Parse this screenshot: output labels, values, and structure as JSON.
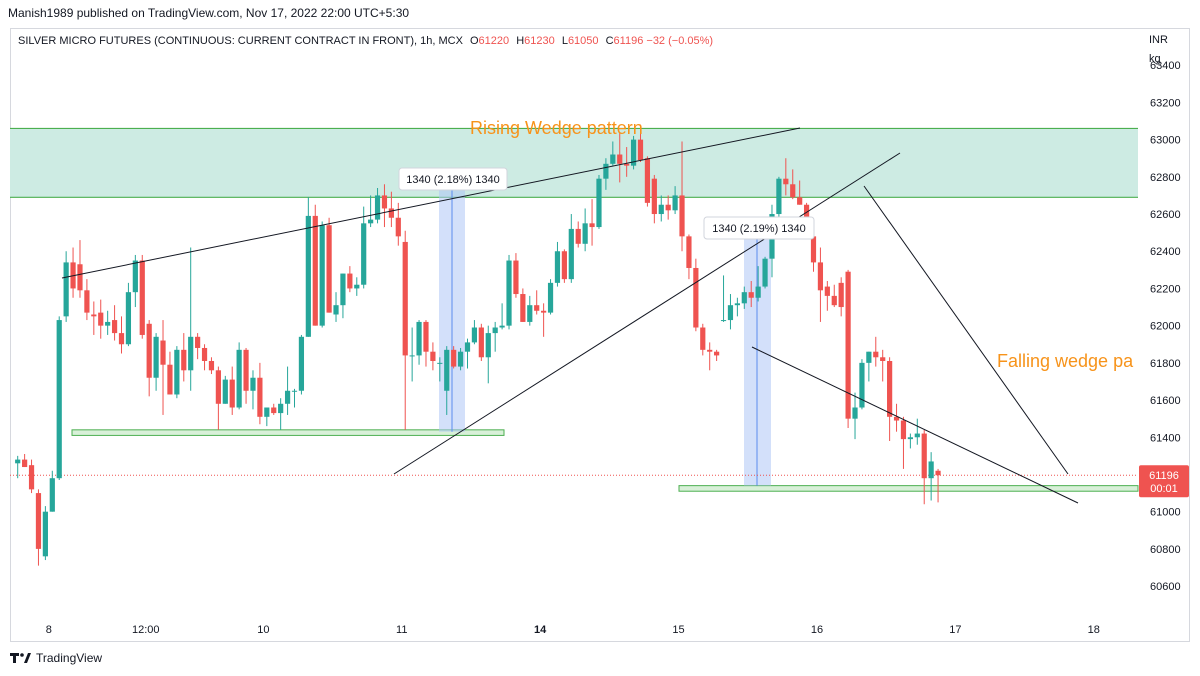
{
  "publisher_line": "Manish1989 published on TradingView.com, Nov 17, 2022 22:00 UTC+5:30",
  "legend": {
    "symbol": "SILVER MICRO FUTURES (CONTINUOUS: CURRENT CONTRACT IN FRONT), 1h, MCX",
    "o_label": "O",
    "o_value": "61220",
    "h_label": "H",
    "h_value": "61230",
    "l_label": "L",
    "l_value": "61050",
    "c_label": "C",
    "c_value": "61196",
    "change": "−32 (−0.05%)"
  },
  "axis_units": [
    "INR",
    "kg"
  ],
  "price_label": {
    "price": "61196",
    "countdown": "00:01"
  },
  "footer": {
    "brand": "TradingView"
  },
  "colors": {
    "up": "#26a69a",
    "down": "#ef5350",
    "zone_fill": "#cdebe3",
    "zone_line": "#4caf50",
    "annotation": "#f7931a",
    "measure": "#aec6f5"
  },
  "chart_data": {
    "type": "candlestick",
    "ylim": [
      60450,
      63600
    ],
    "y_ticks": [
      60600,
      60800,
      61000,
      61200,
      61400,
      61600,
      61800,
      62000,
      62200,
      62400,
      62600,
      62800,
      63000,
      63200,
      63400
    ],
    "x_ticks": [
      {
        "label": "8",
        "x": 4.5
      },
      {
        "label": "12:00",
        "x": 18.5
      },
      {
        "label": "10",
        "x": 35.5
      },
      {
        "label": "11",
        "x": 55.5
      },
      {
        "label": "14",
        "x": 75.5
      },
      {
        "label": "15",
        "x": 95.5
      },
      {
        "label": "16",
        "x": 115.5
      },
      {
        "label": "17",
        "x": 135.5
      },
      {
        "label": "18",
        "x": 155.5
      }
    ],
    "candles": [
      {
        "o": 61260,
        "h": 61300,
        "l": 61180,
        "c": 61280
      },
      {
        "o": 61280,
        "h": 61310,
        "l": 61240,
        "c": 61240
      },
      {
        "o": 61250,
        "h": 61280,
        "l": 61100,
        "c": 61120
      },
      {
        "o": 61100,
        "h": 61120,
        "l": 60710,
        "c": 60800
      },
      {
        "o": 60760,
        "h": 61030,
        "l": 60740,
        "c": 61000
      },
      {
        "o": 61000,
        "h": 61220,
        "l": 61000,
        "c": 61180
      },
      {
        "o": 61180,
        "h": 62050,
        "l": 61170,
        "c": 62030
      },
      {
        "o": 62050,
        "h": 62400,
        "l": 62020,
        "c": 62340
      },
      {
        "o": 62340,
        "h": 62420,
        "l": 62150,
        "c": 62200
      },
      {
        "o": 62330,
        "h": 62460,
        "l": 62150,
        "c": 62190
      },
      {
        "o": 62190,
        "h": 62250,
        "l": 62030,
        "c": 62070
      },
      {
        "o": 62060,
        "h": 62130,
        "l": 61950,
        "c": 62050
      },
      {
        "o": 62070,
        "h": 62140,
        "l": 61930,
        "c": 62000
      },
      {
        "o": 62000,
        "h": 62080,
        "l": 61950,
        "c": 62020
      },
      {
        "o": 62030,
        "h": 62110,
        "l": 61920,
        "c": 61960
      },
      {
        "o": 61960,
        "h": 62050,
        "l": 61850,
        "c": 61900
      },
      {
        "o": 61900,
        "h": 62230,
        "l": 61890,
        "c": 62180
      },
      {
        "o": 62180,
        "h": 62380,
        "l": 62100,
        "c": 62350
      },
      {
        "o": 62350,
        "h": 62380,
        "l": 61930,
        "c": 61950
      },
      {
        "o": 62010,
        "h": 62030,
        "l": 61620,
        "c": 61720
      },
      {
        "o": 61720,
        "h": 61960,
        "l": 61650,
        "c": 61940
      },
      {
        "o": 61920,
        "h": 62030,
        "l": 61520,
        "c": 61790
      },
      {
        "o": 61790,
        "h": 61860,
        "l": 61630,
        "c": 61630
      },
      {
        "o": 61630,
        "h": 61890,
        "l": 61610,
        "c": 61870
      },
      {
        "o": 61870,
        "h": 61960,
        "l": 61700,
        "c": 61760
      },
      {
        "o": 61760,
        "h": 62420,
        "l": 61650,
        "c": 61940
      },
      {
        "o": 61940,
        "h": 61960,
        "l": 61820,
        "c": 61880
      },
      {
        "o": 61880,
        "h": 61900,
        "l": 61760,
        "c": 61810
      },
      {
        "o": 61810,
        "h": 61830,
        "l": 61740,
        "c": 61760
      },
      {
        "o": 61760,
        "h": 61780,
        "l": 61440,
        "c": 61580
      },
      {
        "o": 61580,
        "h": 61730,
        "l": 61580,
        "c": 61710
      },
      {
        "o": 61710,
        "h": 61780,
        "l": 61520,
        "c": 61560
      },
      {
        "o": 61560,
        "h": 61910,
        "l": 61550,
        "c": 61870
      },
      {
        "o": 61870,
        "h": 61880,
        "l": 61580,
        "c": 61650
      },
      {
        "o": 61650,
        "h": 61760,
        "l": 61550,
        "c": 61720
      },
      {
        "o": 61720,
        "h": 61800,
        "l": 61470,
        "c": 61510
      },
      {
        "o": 61510,
        "h": 61560,
        "l": 61460,
        "c": 61560
      },
      {
        "o": 61560,
        "h": 61580,
        "l": 61520,
        "c": 61530
      },
      {
        "o": 61530,
        "h": 61610,
        "l": 61440,
        "c": 61580
      },
      {
        "o": 61580,
        "h": 61780,
        "l": 61520,
        "c": 61650
      },
      {
        "o": 61650,
        "h": 61660,
        "l": 61560,
        "c": 61650
      },
      {
        "o": 61650,
        "h": 61950,
        "l": 61630,
        "c": 61940
      },
      {
        "o": 61940,
        "h": 62690,
        "l": 61940,
        "c": 62590
      },
      {
        "o": 62590,
        "h": 62650,
        "l": 62000,
        "c": 62000
      },
      {
        "o": 62000,
        "h": 62560,
        "l": 61990,
        "c": 62540
      },
      {
        "o": 62540,
        "h": 62580,
        "l": 62070,
        "c": 62070
      },
      {
        "o": 62060,
        "h": 62180,
        "l": 62020,
        "c": 62110
      },
      {
        "o": 62110,
        "h": 62280,
        "l": 62040,
        "c": 62280
      },
      {
        "o": 62280,
        "h": 62320,
        "l": 62180,
        "c": 62200
      },
      {
        "o": 62200,
        "h": 62260,
        "l": 62160,
        "c": 62220
      },
      {
        "o": 62220,
        "h": 62640,
        "l": 62200,
        "c": 62550
      },
      {
        "o": 62550,
        "h": 62700,
        "l": 62530,
        "c": 62570
      },
      {
        "o": 62570,
        "h": 62740,
        "l": 62550,
        "c": 62700
      },
      {
        "o": 62700,
        "h": 62760,
        "l": 62530,
        "c": 62630
      },
      {
        "o": 62630,
        "h": 62720,
        "l": 62530,
        "c": 62580
      },
      {
        "o": 62580,
        "h": 62660,
        "l": 62430,
        "c": 62480
      },
      {
        "o": 62450,
        "h": 62510,
        "l": 61440,
        "c": 61840
      },
      {
        "o": 61840,
        "h": 61990,
        "l": 61700,
        "c": 61840
      },
      {
        "o": 61840,
        "h": 62030,
        "l": 61790,
        "c": 62020
      },
      {
        "o": 62020,
        "h": 62030,
        "l": 61780,
        "c": 61860
      },
      {
        "o": 61860,
        "h": 61910,
        "l": 61760,
        "c": 61810
      },
      {
        "o": 61800,
        "h": 61830,
        "l": 61700,
        "c": 61800
      },
      {
        "o": 61650,
        "h": 61890,
        "l": 61520,
        "c": 61870
      },
      {
        "o": 61870,
        "h": 61890,
        "l": 61770,
        "c": 61780
      },
      {
        "o": 61780,
        "h": 61880,
        "l": 61760,
        "c": 61860
      },
      {
        "o": 61860,
        "h": 61930,
        "l": 61770,
        "c": 61910
      },
      {
        "o": 61910,
        "h": 62030,
        "l": 61900,
        "c": 61990
      },
      {
        "o": 61990,
        "h": 62010,
        "l": 61810,
        "c": 61830
      },
      {
        "o": 61830,
        "h": 62000,
        "l": 61690,
        "c": 61960
      },
      {
        "o": 61960,
        "h": 62020,
        "l": 61860,
        "c": 61990
      },
      {
        "o": 61990,
        "h": 62120,
        "l": 61980,
        "c": 62000
      },
      {
        "o": 62000,
        "h": 62380,
        "l": 61980,
        "c": 62350
      },
      {
        "o": 62350,
        "h": 62390,
        "l": 62150,
        "c": 62170
      },
      {
        "o": 62170,
        "h": 62200,
        "l": 62020,
        "c": 62020
      },
      {
        "o": 62020,
        "h": 62160,
        "l": 62000,
        "c": 62110
      },
      {
        "o": 62110,
        "h": 62190,
        "l": 62060,
        "c": 62080
      },
      {
        "o": 62080,
        "h": 62120,
        "l": 61940,
        "c": 62070
      },
      {
        "o": 62070,
        "h": 62250,
        "l": 62060,
        "c": 62230
      },
      {
        "o": 62230,
        "h": 62450,
        "l": 62210,
        "c": 62400
      },
      {
        "o": 62400,
        "h": 62410,
        "l": 62230,
        "c": 62250
      },
      {
        "o": 62250,
        "h": 62600,
        "l": 62230,
        "c": 62520
      },
      {
        "o": 62520,
        "h": 62560,
        "l": 62420,
        "c": 62440
      },
      {
        "o": 62440,
        "h": 62630,
        "l": 62400,
        "c": 62550
      },
      {
        "o": 62550,
        "h": 62680,
        "l": 62430,
        "c": 62530
      },
      {
        "o": 62530,
        "h": 62810,
        "l": 62520,
        "c": 62790
      },
      {
        "o": 62790,
        "h": 62900,
        "l": 62730,
        "c": 62870
      },
      {
        "o": 62870,
        "h": 62990,
        "l": 62860,
        "c": 62920
      },
      {
        "o": 62920,
        "h": 63040,
        "l": 62770,
        "c": 62870
      },
      {
        "o": 62870,
        "h": 62960,
        "l": 62800,
        "c": 62860
      },
      {
        "o": 62860,
        "h": 63020,
        "l": 62840,
        "c": 63000
      },
      {
        "o": 63000,
        "h": 63080,
        "l": 62880,
        "c": 62890
      },
      {
        "o": 62900,
        "h": 62910,
        "l": 62640,
        "c": 62660
      },
      {
        "o": 62790,
        "h": 62810,
        "l": 62550,
        "c": 62600
      },
      {
        "o": 62600,
        "h": 62700,
        "l": 62560,
        "c": 62650
      },
      {
        "o": 62650,
        "h": 62700,
        "l": 62570,
        "c": 62620
      },
      {
        "o": 62620,
        "h": 62750,
        "l": 62600,
        "c": 62700
      },
      {
        "o": 62700,
        "h": 62990,
        "l": 62400,
        "c": 62480
      },
      {
        "o": 62480,
        "h": 62490,
        "l": 62250,
        "c": 62310
      },
      {
        "o": 62310,
        "h": 62360,
        "l": 61970,
        "c": 61990
      },
      {
        "o": 61990,
        "h": 62010,
        "l": 61840,
        "c": 61870
      },
      {
        "o": 61870,
        "h": 61910,
        "l": 61760,
        "c": 61860
      },
      {
        "o": 61860,
        "h": 61870,
        "l": 61810,
        "c": 61840
      },
      {
        "o": 62030,
        "h": 62270,
        "l": 62020,
        "c": 62030
      },
      {
        "o": 62030,
        "h": 62170,
        "l": 61980,
        "c": 62110
      },
      {
        "o": 62110,
        "h": 62150,
        "l": 62050,
        "c": 62120
      },
      {
        "o": 62120,
        "h": 62210,
        "l": 62090,
        "c": 62180
      },
      {
        "o": 62180,
        "h": 62240,
        "l": 62100,
        "c": 62150
      },
      {
        "o": 62150,
        "h": 62320,
        "l": 62130,
        "c": 62210
      },
      {
        "o": 62210,
        "h": 62370,
        "l": 62200,
        "c": 62360
      },
      {
        "o": 62360,
        "h": 62650,
        "l": 62260,
        "c": 62600
      },
      {
        "o": 62600,
        "h": 62800,
        "l": 62580,
        "c": 62790
      },
      {
        "o": 62790,
        "h": 62900,
        "l": 62700,
        "c": 62760
      },
      {
        "o": 62760,
        "h": 62840,
        "l": 62680,
        "c": 62690
      },
      {
        "o": 62690,
        "h": 62780,
        "l": 62650,
        "c": 62650
      },
      {
        "o": 62650,
        "h": 62660,
        "l": 62500,
        "c": 62530
      },
      {
        "o": 62480,
        "h": 62500,
        "l": 62290,
        "c": 62340
      },
      {
        "o": 62340,
        "h": 62420,
        "l": 62020,
        "c": 62190
      },
      {
        "o": 62210,
        "h": 62240,
        "l": 62080,
        "c": 62160
      },
      {
        "o": 62160,
        "h": 62220,
        "l": 62100,
        "c": 62110
      },
      {
        "o": 62230,
        "h": 62260,
        "l": 62050,
        "c": 62100
      },
      {
        "o": 62290,
        "h": 62300,
        "l": 61450,
        "c": 61500
      },
      {
        "o": 61500,
        "h": 61640,
        "l": 61390,
        "c": 61560
      },
      {
        "o": 61560,
        "h": 61820,
        "l": 61550,
        "c": 61800
      },
      {
        "o": 61800,
        "h": 61860,
        "l": 61700,
        "c": 61860
      },
      {
        "o": 61860,
        "h": 61940,
        "l": 61780,
        "c": 61830
      },
      {
        "o": 61830,
        "h": 61870,
        "l": 61700,
        "c": 61810
      },
      {
        "o": 61810,
        "h": 61830,
        "l": 61380,
        "c": 61510
      },
      {
        "o": 61510,
        "h": 61580,
        "l": 61430,
        "c": 61490
      },
      {
        "o": 61490,
        "h": 61510,
        "l": 61230,
        "c": 61390
      },
      {
        "o": 61390,
        "h": 61420,
        "l": 61340,
        "c": 61400
      },
      {
        "o": 61400,
        "h": 61500,
        "l": 61360,
        "c": 61420
      },
      {
        "o": 61420,
        "h": 61440,
        "l": 61040,
        "c": 61180
      },
      {
        "o": 61180,
        "h": 61320,
        "l": 61060,
        "c": 61270
      },
      {
        "o": 61220,
        "h": 61230,
        "l": 61050,
        "c": 61196
      }
    ]
  },
  "annotations": {
    "rising_wedge_label": "Rising Wedge pattern",
    "falling_wedge_label": "Falling wedge pa",
    "measure_label_1": "1340 (2.18%) 1340",
    "measure_label_2": "1340 (2.19%) 1340"
  }
}
